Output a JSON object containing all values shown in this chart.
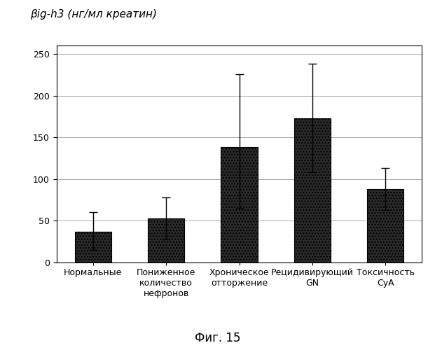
{
  "categories": [
    "Нормальные",
    "Пониженное\nколичество\nнефронов",
    "Хроническое\nотторжение",
    "Рецидивирующий\nGN",
    "Токсичность\nCyA"
  ],
  "values": [
    37,
    53,
    138,
    173,
    88
  ],
  "errors_upper": [
    23,
    25,
    88,
    65,
    25
  ],
  "errors_lower": [
    22,
    25,
    73,
    65,
    25
  ],
  "bar_color": "#1c1c1c",
  "bar_edge_color": "#000000",
  "bar_width": 0.5,
  "ylim": [
    0,
    260
  ],
  "yticks": [
    0,
    50,
    100,
    150,
    200,
    250
  ],
  "ylabel": "βig-h3 (нг/мл креатин)",
  "caption": "Фиг. 15",
  "background_color": "#ffffff",
  "grid_color": "#aaaaaa",
  "tick_fontsize": 9,
  "xlabel_fontsize": 9,
  "ylabel_fontsize": 11,
  "caption_fontsize": 12
}
